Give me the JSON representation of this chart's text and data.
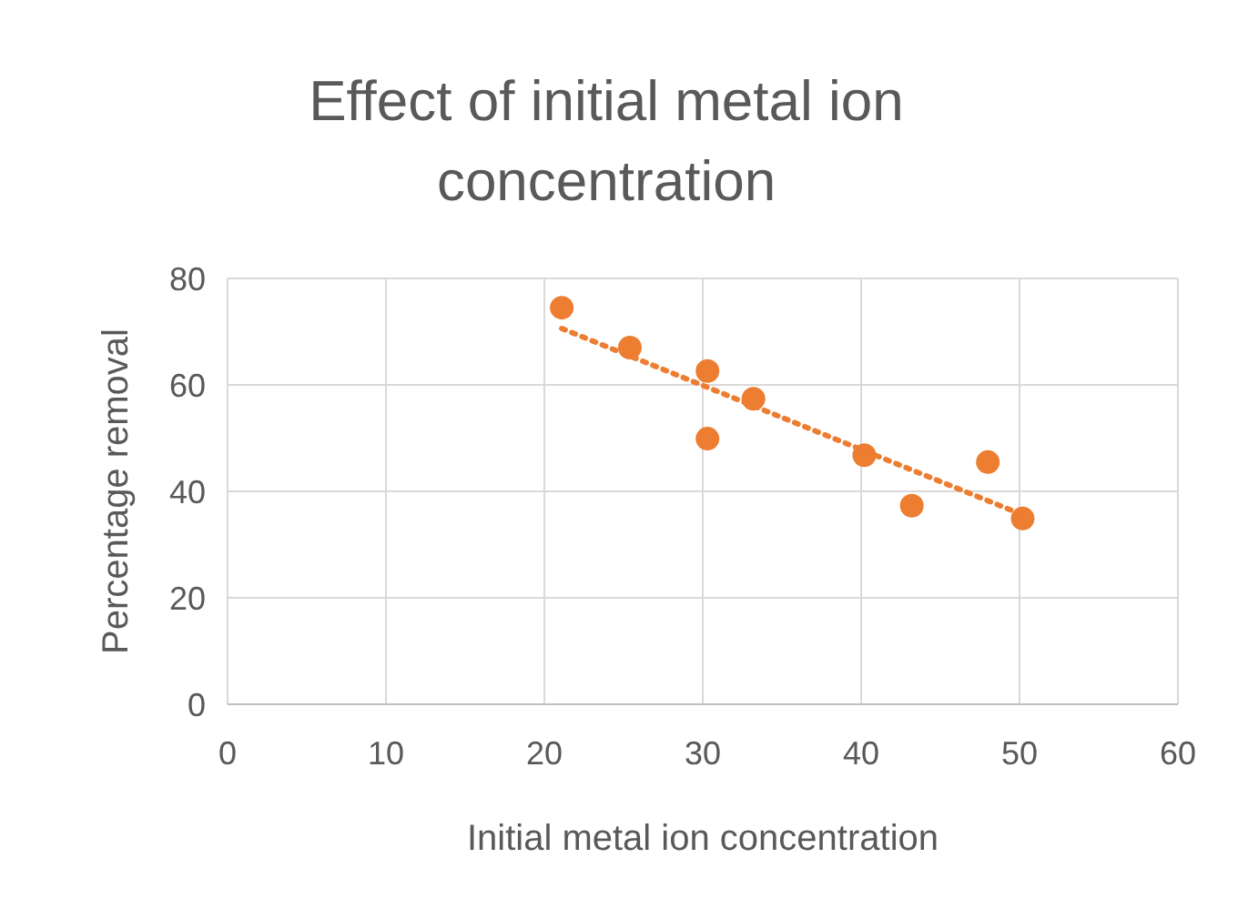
{
  "chart_data": {
    "type": "scatter",
    "title": "Effect of initial metal ion concentration",
    "xlabel": "Initial metal ion concentration",
    "ylabel": "Percentage removal",
    "xlim": [
      0,
      60
    ],
    "xticks": [
      0,
      10,
      20,
      30,
      40,
      50,
      60
    ],
    "ylim": [
      0,
      80
    ],
    "yticks": [
      0,
      20,
      40,
      60,
      80
    ],
    "grid": true,
    "series": [
      {
        "color": "#ed7d31",
        "marker": "circle",
        "x": [
          21.1,
          25.4,
          30.3,
          30.3,
          33.2,
          40.2,
          43.2,
          48.0,
          50.2
        ],
        "values": [
          74.5,
          67,
          62.6,
          49.9,
          57.4,
          46.8,
          37.3,
          45.5,
          34.9
        ]
      },
      {
        "type": "line",
        "color": "#ed7d31",
        "marker": "none",
        "line_style": "dotted",
        "x": [
          21.1,
          50.2
        ],
        "values": [
          70.6,
          35.6
        ]
      }
    ]
  }
}
